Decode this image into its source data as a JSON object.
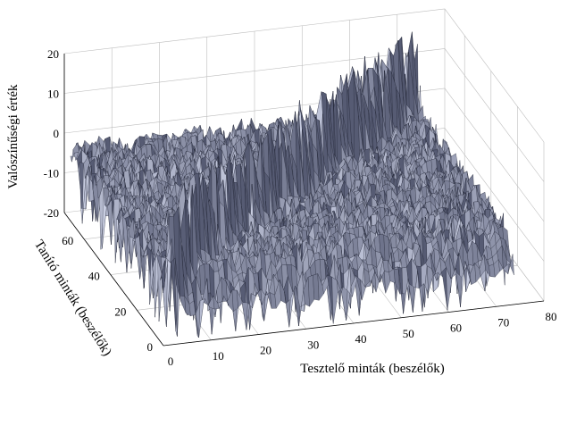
{
  "chart_data": {
    "type": "surface3d",
    "title": "",
    "xlabel": "Tesztelő minták (beszélők)",
    "ylabel": "Tanító minták (beszélők)",
    "zlabel": "Valószínűségi érték",
    "xlim": [
      0,
      80
    ],
    "ylim": [
      0,
      75
    ],
    "zlim": [
      -20,
      20
    ],
    "xticks": [
      0,
      10,
      20,
      30,
      40,
      50,
      60,
      70,
      80
    ],
    "yticks": [
      0,
      20,
      40,
      60
    ],
    "zticks": [
      -20,
      -10,
      0,
      10,
      20
    ],
    "grid": true,
    "surface": {
      "x_range": [
        1,
        74
      ],
      "y_range": [
        1,
        74
      ],
      "z_typical_range": [
        -20,
        8
      ],
      "z_peak_max": 18,
      "diagonal_peaks": true,
      "face_color": "#8c93ad",
      "edge_color": "#1e2333"
    }
  }
}
